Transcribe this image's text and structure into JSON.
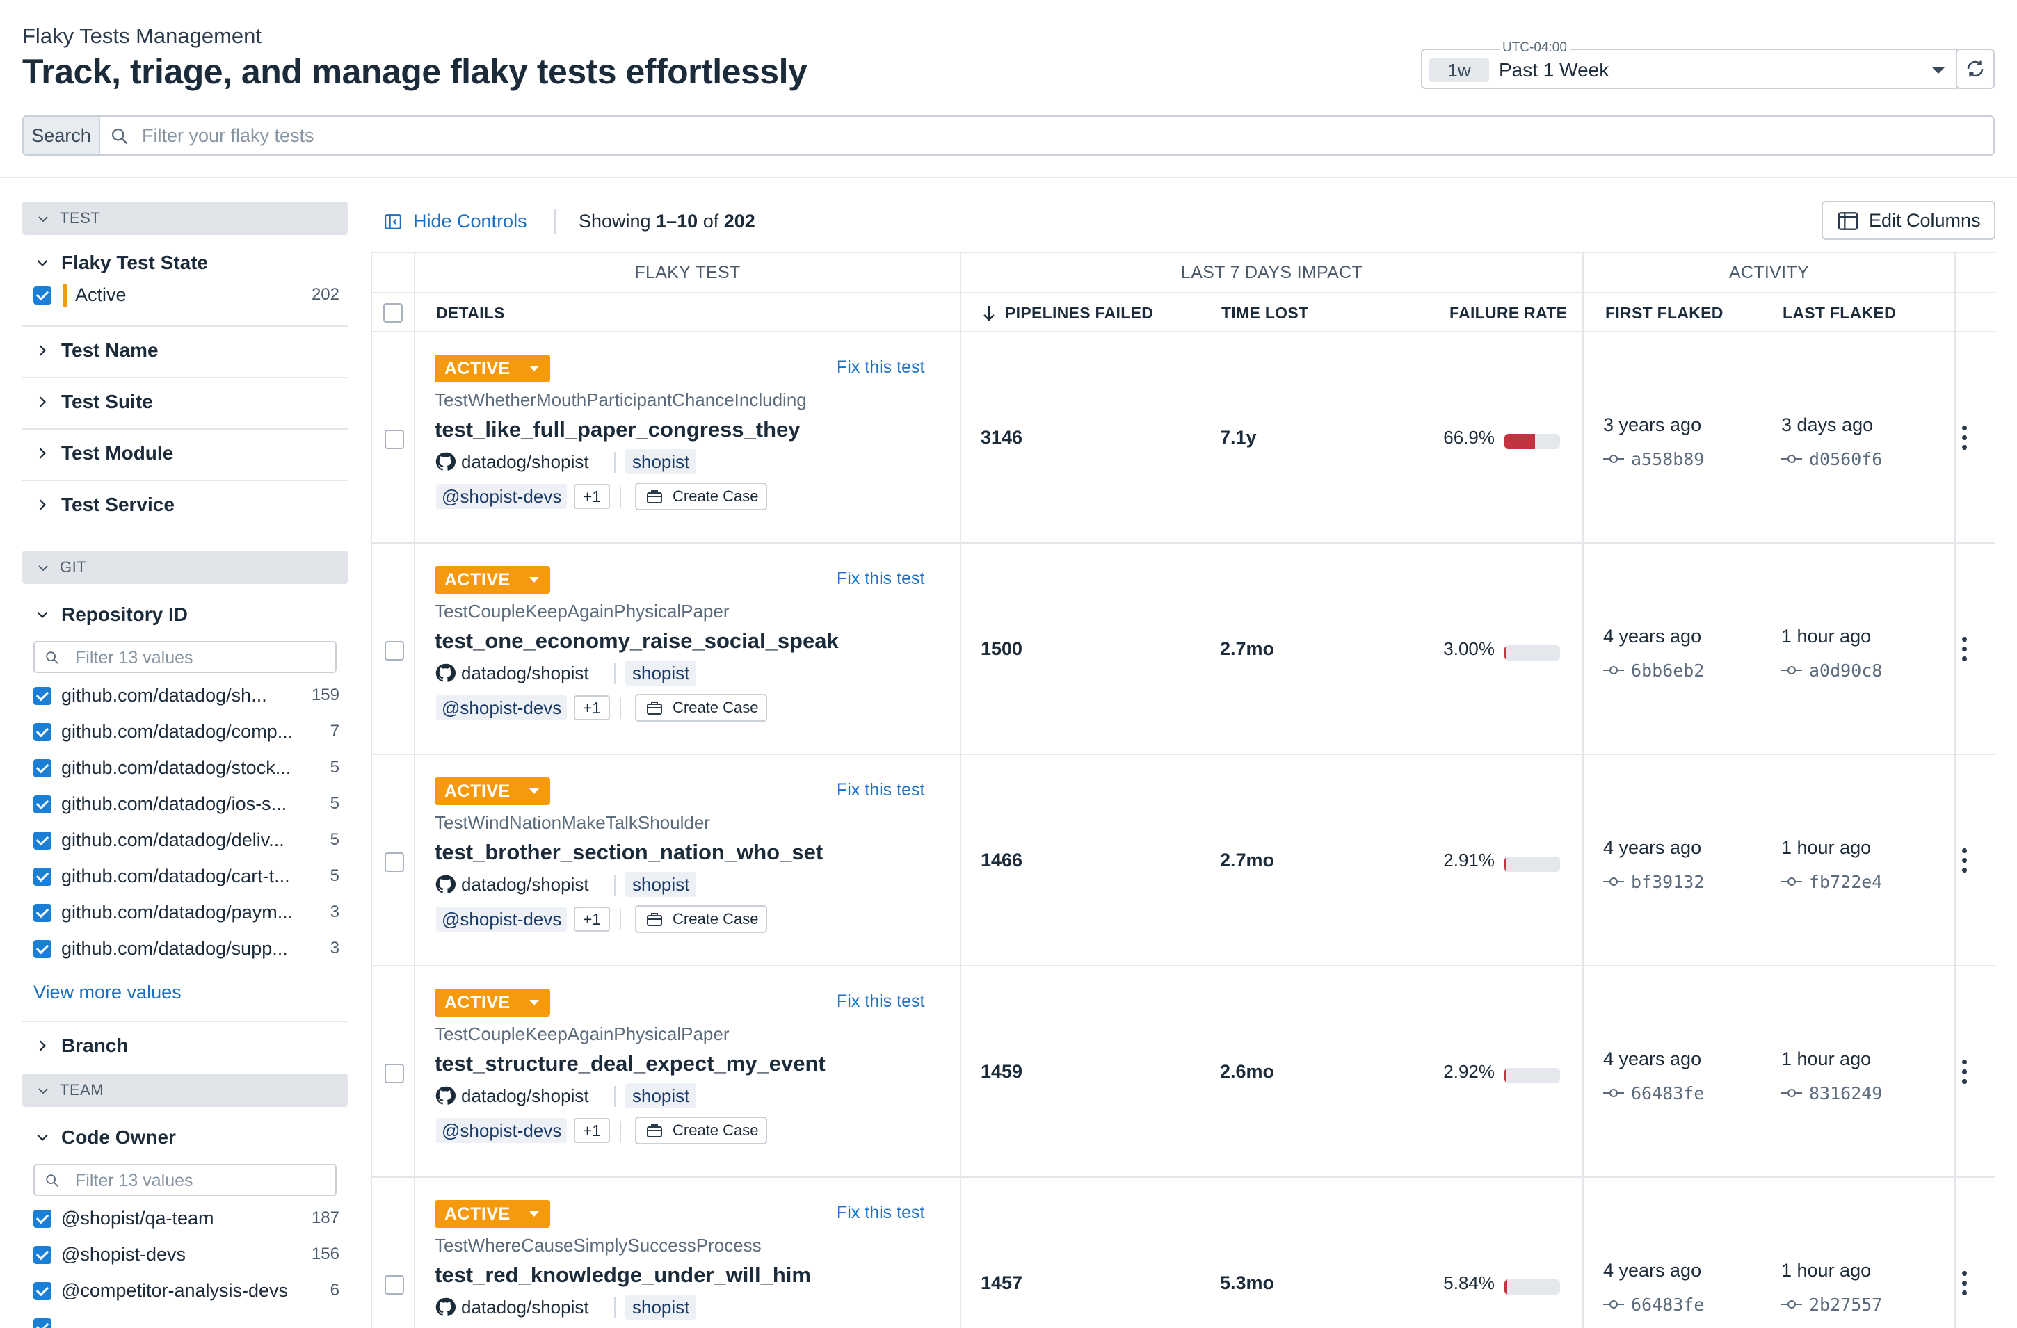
{
  "header": {
    "eyebrow": "Flaky Tests Management",
    "title": "Track, triage, and manage flaky tests effortlessly",
    "timezone": "UTC-04:00",
    "time_badge": "1w",
    "time_range": "Past 1 Week"
  },
  "search": {
    "label": "Search",
    "placeholder": "Filter your flaky tests"
  },
  "sidebar": {
    "test_section": "TEST",
    "flaky_state": {
      "label": "Flaky Test State",
      "option": "Active",
      "count": "202"
    },
    "facets": [
      "Test Name",
      "Test Suite",
      "Test Module",
      "Test Service"
    ],
    "git_section": "GIT",
    "repository": {
      "label": "Repository ID",
      "filter_placeholder": "Filter 13 values",
      "items": [
        {
          "label": "github.com/datadog/sh...",
          "count": "159"
        },
        {
          "label": "github.com/datadog/comp...",
          "count": "7"
        },
        {
          "label": "github.com/datadog/stock...",
          "count": "5"
        },
        {
          "label": "github.com/datadog/ios-s...",
          "count": "5"
        },
        {
          "label": "github.com/datadog/deliv...",
          "count": "5"
        },
        {
          "label": "github.com/datadog/cart-t...",
          "count": "5"
        },
        {
          "label": "github.com/datadog/paym...",
          "count": "3"
        },
        {
          "label": "github.com/datadog/supp...",
          "count": "3"
        }
      ],
      "view_more": "View more values"
    },
    "branch": "Branch",
    "team_section": "TEAM",
    "code_owner": {
      "label": "Code Owner",
      "filter_placeholder": "Filter 13 values",
      "items": [
        {
          "label": "@shopist/qa-team",
          "count": "187"
        },
        {
          "label": "@shopist-devs",
          "count": "156"
        },
        {
          "label": "@competitor-analysis-devs",
          "count": "6"
        }
      ]
    }
  },
  "toolbar": {
    "hide_controls": "Hide Controls",
    "showing_prefix": "Showing",
    "showing_range": "1–10",
    "showing_of": "of",
    "showing_total": "202",
    "edit_columns": "Edit Columns"
  },
  "table": {
    "groups": {
      "flaky_test": "FLAKY TEST",
      "impact": "LAST 7 DAYS IMPACT",
      "activity": "ACTIVITY"
    },
    "columns": {
      "details": "DETAILS",
      "pipelines_failed": "PIPELINES FAILED",
      "time_lost": "TIME LOST",
      "failure_rate": "FAILURE RATE",
      "first_flaked": "FIRST FLAKED",
      "last_flaked": "LAST FLAKED"
    },
    "row_labels": {
      "status": "ACTIVE",
      "fix": "Fix this test",
      "repo": "datadog/shopist",
      "service": "shopist",
      "owner": "@shopist-devs",
      "more_owners": "+1",
      "create_case": "Create Case"
    },
    "rows": [
      {
        "suite": "TestWhetherMouthParticipantChanceIncluding",
        "name": "test_like_full_paper_congress_they",
        "pipelines": "3146",
        "time_lost": "7.1y",
        "rate": "66.9%",
        "rate_value": 0.669,
        "first": "3 years ago",
        "first_sha": "a558b89",
        "last": "3 days ago",
        "last_sha": "d0560f6"
      },
      {
        "suite": "TestCoupleKeepAgainPhysicalPaper",
        "name": "test_one_economy_raise_social_speak",
        "pipelines": "1500",
        "time_lost": "2.7mo",
        "rate": "3.00%",
        "rate_value": 0.03,
        "first": "4 years ago",
        "first_sha": "6bb6eb2",
        "last": "1 hour ago",
        "last_sha": "a0d90c8"
      },
      {
        "suite": "TestWindNationMakeTalkShoulder",
        "name": "test_brother_section_nation_who_set",
        "pipelines": "1466",
        "time_lost": "2.7mo",
        "rate": "2.91%",
        "rate_value": 0.0291,
        "first": "4 years ago",
        "first_sha": "bf39132",
        "last": "1 hour ago",
        "last_sha": "fb722e4"
      },
      {
        "suite": "TestCoupleKeepAgainPhysicalPaper",
        "name": "test_structure_deal_expect_my_event",
        "pipelines": "1459",
        "time_lost": "2.6mo",
        "rate": "2.92%",
        "rate_value": 0.0292,
        "first": "4 years ago",
        "first_sha": "66483fe",
        "last": "1 hour ago",
        "last_sha": "8316249"
      },
      {
        "suite": "TestWhereCauseSimplySuccessProcess",
        "name": "test_red_knowledge_under_will_him",
        "pipelines": "1457",
        "time_lost": "5.3mo",
        "rate": "5.84%",
        "rate_value": 0.0584,
        "first": "4 years ago",
        "first_sha": "66483fe",
        "last": "1 hour ago",
        "last_sha": "2b27557"
      }
    ]
  },
  "colors": {
    "accent": "#1a6fc4",
    "status_active": "#f59a0c",
    "failure_bar": "#c2323f"
  }
}
